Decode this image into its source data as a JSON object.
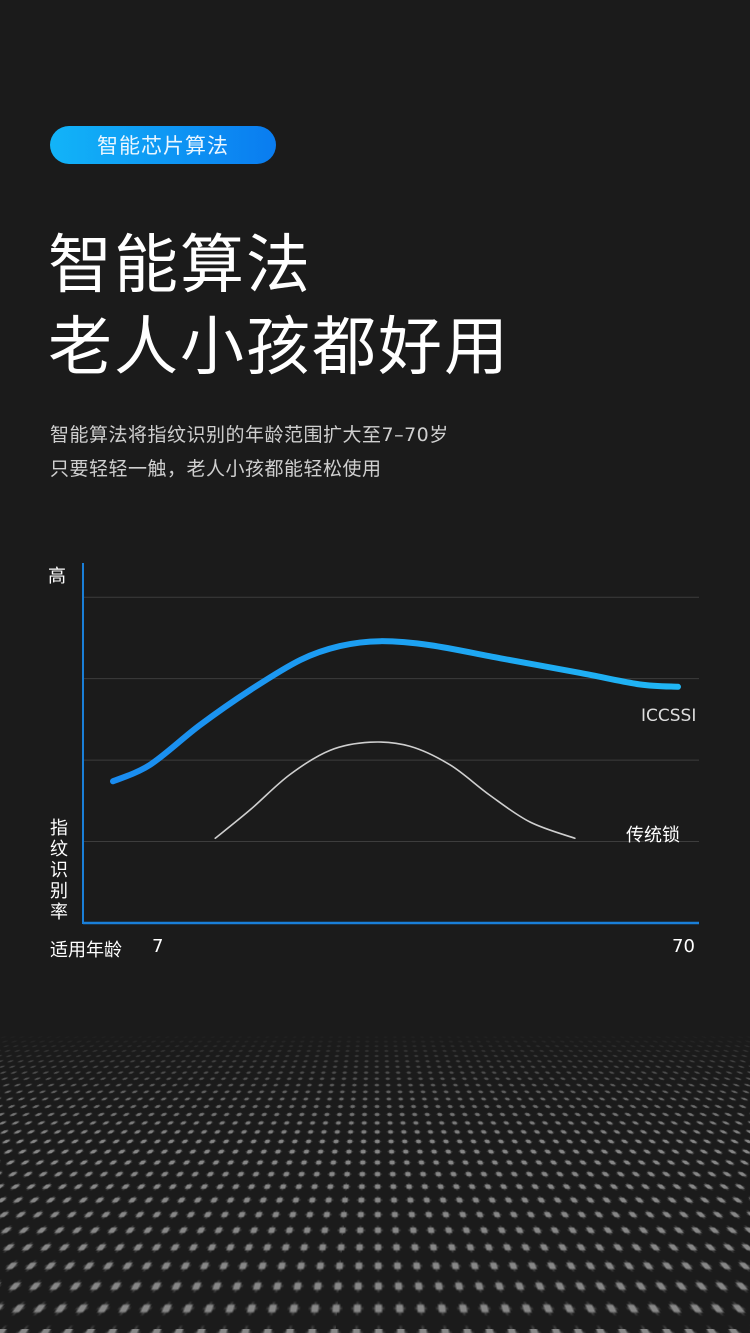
{
  "badge": "智能芯片算法",
  "title": {
    "line1": "智能算法",
    "line2": "老人小孩都好用"
  },
  "subtitle": {
    "line1": "智能算法将指纹识别的年龄范围扩大至7–70岁",
    "line2": "只要轻轻一触，老人小孩都能轻松使用"
  },
  "chart_data": {
    "type": "line",
    "title": "",
    "ylabel": "指纹识别率",
    "ylabel_top": "高",
    "xlabel": "适用年龄",
    "x_tick_labels": [
      "7",
      "70"
    ],
    "xlim": [
      7,
      70
    ],
    "ylim": [
      0,
      4.42
    ],
    "grid": true,
    "gridlines_y": [
      1,
      2,
      3,
      4
    ],
    "series": [
      {
        "name": "ICCSSI",
        "color": "#1a9cf0",
        "x": [
          7,
          11.1,
          16.7,
          22.3,
          27.9,
          32.3,
          36.8,
          42.4,
          50.2,
          59.1,
          65.7,
          70
        ],
        "y": [
          1.74,
          1.94,
          2.43,
          2.86,
          3.23,
          3.4,
          3.46,
          3.41,
          3.25,
          3.07,
          2.93,
          2.9
        ]
      },
      {
        "name": "传统锁",
        "color": "#cfcfcf",
        "x": [
          18.4,
          22.3,
          26.7,
          31.2,
          35.7,
          40.1,
          44.6,
          49.0,
          53.5,
          58.5
        ],
        "y": [
          1.04,
          1.39,
          1.82,
          2.12,
          2.22,
          2.17,
          1.94,
          1.57,
          1.24,
          1.04
        ]
      }
    ]
  },
  "colors": {
    "accent": "#0a8ff0",
    "background": "#1b1b1b",
    "axis": "#1a7fd8"
  }
}
